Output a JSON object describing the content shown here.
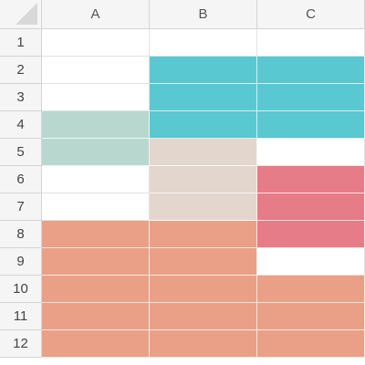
{
  "columns": [
    "A",
    "B",
    "C"
  ],
  "rows": [
    "1",
    "2",
    "3",
    "4",
    "5",
    "6",
    "7",
    "8",
    "9",
    "10",
    "11",
    "12"
  ],
  "palette": {
    "empty": "#ffffff",
    "teal": "#5ac8d0",
    "mint": "#b8d8cf",
    "beige": "#e3d6cd",
    "pink": "#e67c87",
    "salmon": "#e9a086"
  },
  "cell_fills": [
    [
      "empty",
      "empty",
      "empty"
    ],
    [
      "empty",
      "teal",
      "teal"
    ],
    [
      "empty",
      "teal",
      "teal"
    ],
    [
      "mint",
      "teal",
      "teal"
    ],
    [
      "mint",
      "beige",
      "empty"
    ],
    [
      "empty",
      "beige",
      "pink"
    ],
    [
      "empty",
      "beige",
      "pink"
    ],
    [
      "salmon",
      "salmon",
      "pink"
    ],
    [
      "salmon",
      "salmon",
      "empty"
    ],
    [
      "salmon",
      "salmon",
      "salmon"
    ],
    [
      "salmon",
      "salmon",
      "salmon"
    ],
    [
      "salmon",
      "salmon",
      "salmon"
    ]
  ]
}
